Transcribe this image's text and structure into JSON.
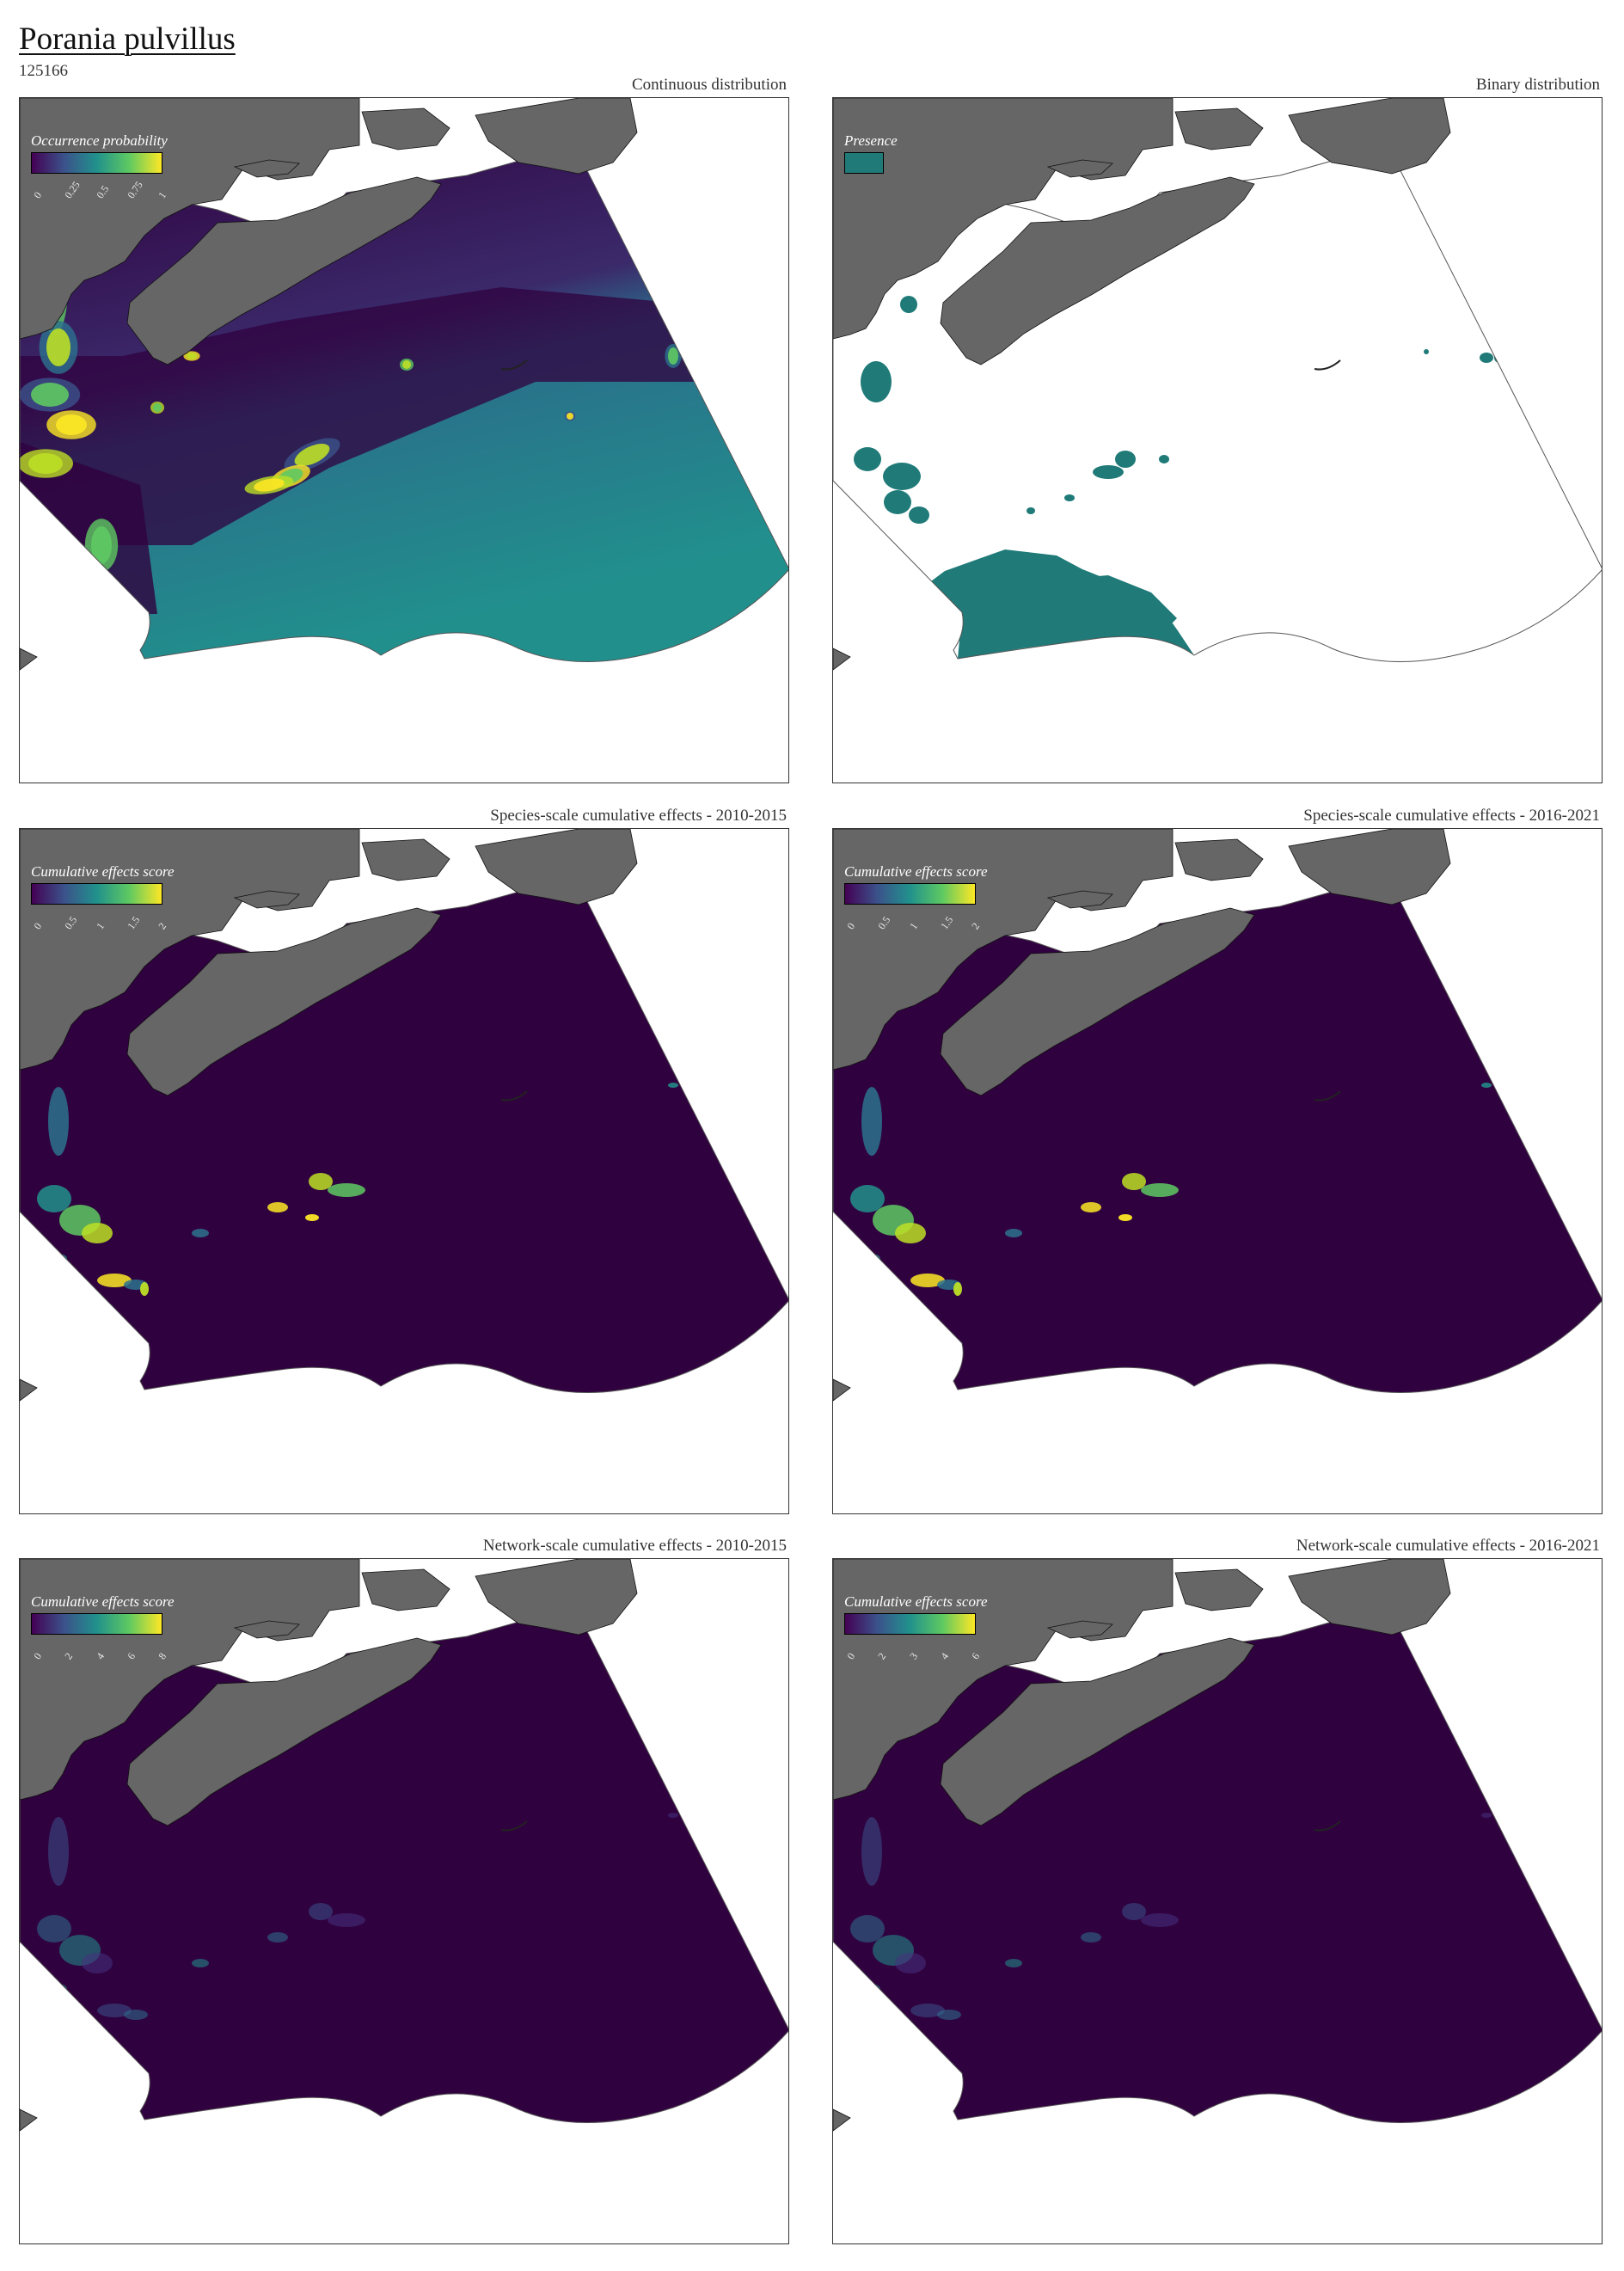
{
  "header": {
    "species_name": "Porania pulvillus",
    "species_id": "125166"
  },
  "colors": {
    "land": "#666666",
    "ocean_low": "#30013f",
    "viridis_mid": "#22908c",
    "viridis_high": "#fde725",
    "presence": "#1f7a78"
  },
  "panels": [
    {
      "label": "Continuous distribution",
      "map_type": "continuous",
      "legend": {
        "title": "Occurrence probability",
        "ticks": [
          "0",
          "0.25",
          "0.5",
          "0.75",
          "1"
        ]
      }
    },
    {
      "label": "Binary distribution",
      "map_type": "binary",
      "legend": {
        "title": "Presence",
        "ticks": []
      }
    },
    {
      "label": "Species-scale cumulative effects - 2010-2015",
      "map_type": "effects",
      "legend": {
        "title": "Cumulative effects score",
        "ticks": [
          "0",
          "0.5",
          "1",
          "1.5",
          "2"
        ]
      }
    },
    {
      "label": "Species-scale cumulative effects - 2016-2021",
      "map_type": "effects",
      "legend": {
        "title": "Cumulative effects score",
        "ticks": [
          "0",
          "0.5",
          "1",
          "1.5",
          "2"
        ]
      }
    },
    {
      "label": "Network-scale cumulative effects - 2010-2015",
      "map_type": "effects-faint",
      "legend": {
        "title": "Cumulative effects score",
        "ticks": [
          "0",
          "2",
          "4",
          "6",
          "8"
        ]
      }
    },
    {
      "label": "Network-scale cumulative effects - 2016-2021",
      "map_type": "effects-faint",
      "legend": {
        "title": "Cumulative effects score",
        "ticks": [
          "0",
          "2",
          "3",
          "4",
          "6"
        ]
      }
    }
  ]
}
